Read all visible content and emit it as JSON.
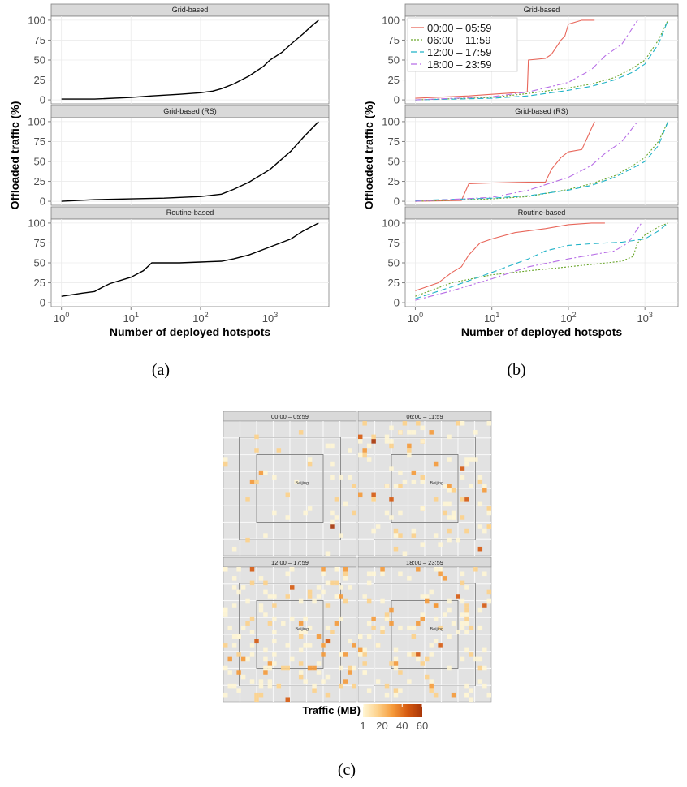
{
  "figure": {
    "caption_a": "(a)",
    "caption_b": "(b)",
    "caption_c": "(c)"
  },
  "chart_data": [
    {
      "type": "line",
      "id": "a",
      "xlabel": "Number of deployed hotspots",
      "ylabel": "Offloaded traffic (%)",
      "xscale": "log10",
      "xlim": [
        1,
        5000
      ],
      "xticks": [
        1,
        10,
        100,
        1000
      ],
      "xtick_labels": [
        "10^0",
        "10^1",
        "10^2",
        "10^3"
      ],
      "ylim": [
        0,
        100
      ],
      "yticks": [
        0,
        25,
        50,
        75,
        100
      ],
      "panels": [
        {
          "title": "Grid-based",
          "series": [
            {
              "x": [
                1,
                3,
                10,
                20,
                50,
                100,
                150,
                200,
                300,
                500,
                800,
                1000,
                1500,
                2000,
                3000,
                4000,
                5000
              ],
              "y": [
                1,
                1,
                3,
                5,
                7,
                9,
                11,
                14,
                20,
                30,
                42,
                50,
                60,
                70,
                83,
                93,
                100
              ]
            }
          ]
        },
        {
          "title": "Grid-based (RS)",
          "series": [
            {
              "x": [
                1,
                3,
                10,
                30,
                100,
                200,
                300,
                500,
                1000,
                2000,
                3000,
                5000
              ],
              "y": [
                0,
                2,
                3,
                4,
                6,
                9,
                15,
                24,
                40,
                63,
                80,
                100
              ]
            }
          ]
        },
        {
          "title": "Routine-based",
          "series": [
            {
              "x": [
                1,
                2,
                3,
                4,
                5,
                10,
                15,
                20,
                50,
                100,
                200,
                300,
                500,
                1000,
                2000,
                3000,
                5000
              ],
              "y": [
                8,
                12,
                14,
                20,
                24,
                32,
                40,
                50,
                50,
                51,
                52,
                55,
                60,
                70,
                80,
                90,
                100
              ]
            }
          ]
        }
      ]
    },
    {
      "type": "line",
      "id": "b",
      "xlabel": "Number of deployed hotspots",
      "ylabel": "Offloaded traffic (%)",
      "xscale": "log10",
      "xlim": [
        1,
        2000
      ],
      "xticks": [
        1,
        10,
        100,
        1000
      ],
      "xtick_labels": [
        "10^0",
        "10^1",
        "10^2",
        "10^3"
      ],
      "ylim": [
        0,
        100
      ],
      "yticks": [
        0,
        25,
        50,
        75,
        100
      ],
      "legend": "top-left",
      "series_styles": [
        {
          "name": "00:00 – 05:59",
          "color": "#e8665a",
          "dash": ""
        },
        {
          "name": "06:00 – 11:59",
          "color": "#6aa62b",
          "dash": "2,2"
        },
        {
          "name": "12:00 – 17:59",
          "color": "#1fb2c7",
          "dash": "7,4"
        },
        {
          "name": "18:00 – 23:59",
          "color": "#b76ee6",
          "dash": "8,3,2,3"
        }
      ],
      "panels": [
        {
          "title": "Grid-based",
          "series": [
            {
              "x": [
                1,
                5,
                10,
                20,
                29,
                30,
                50,
                60,
                80,
                90,
                100,
                150,
                220
              ],
              "y": [
                2,
                5,
                7,
                9,
                10,
                50,
                52,
                57,
                75,
                80,
                95,
                100,
                100
              ]
            },
            {
              "x": [
                1,
                10,
                30,
                100,
                200,
                400,
                700,
                1000,
                1500,
                2000
              ],
              "y": [
                0,
                3,
                8,
                15,
                20,
                28,
                40,
                50,
                75,
                100
              ]
            },
            {
              "x": [
                1,
                10,
                30,
                100,
                200,
                400,
                700,
                1000,
                1500,
                2000
              ],
              "y": [
                0,
                2,
                5,
                12,
                17,
                25,
                35,
                45,
                70,
                100
              ]
            },
            {
              "x": [
                1,
                10,
                30,
                100,
                200,
                300,
                500,
                800
              ],
              "y": [
                0,
                4,
                10,
                22,
                38,
                55,
                70,
                100
              ]
            }
          ]
        },
        {
          "title": "Grid-based (RS)",
          "series": [
            {
              "x": [
                1,
                4,
                5,
                10,
                30,
                50,
                60,
                80,
                100,
                150,
                220
              ],
              "y": [
                0,
                1,
                22,
                23,
                24,
                24,
                40,
                55,
                62,
                65,
                100
              ]
            },
            {
              "x": [
                1,
                10,
                30,
                100,
                200,
                400,
                700,
                1000,
                1500,
                2000
              ],
              "y": [
                0,
                3,
                6,
                15,
                22,
                32,
                45,
                55,
                75,
                100
              ]
            },
            {
              "x": [
                1,
                10,
                30,
                100,
                200,
                400,
                700,
                1000,
                1500,
                2000
              ],
              "y": [
                1,
                4,
                7,
                14,
                20,
                30,
                42,
                50,
                70,
                100
              ]
            },
            {
              "x": [
                1,
                10,
                30,
                100,
                200,
                300,
                500,
                800
              ],
              "y": [
                0,
                5,
                14,
                30,
                45,
                60,
                75,
                100
              ]
            }
          ]
        },
        {
          "title": "Routine-based",
          "series": [
            {
              "x": [
                1,
                2,
                3,
                4,
                5,
                7,
                10,
                20,
                50,
                100,
                200,
                300
              ],
              "y": [
                15,
                25,
                38,
                45,
                60,
                75,
                80,
                88,
                93,
                98,
                100,
                100
              ]
            },
            {
              "x": [
                1,
                3,
                10,
                30,
                100,
                200,
                500,
                700,
                800,
                1000,
                1500,
                2000
              ],
              "y": [
                8,
                25,
                35,
                40,
                45,
                48,
                52,
                58,
                75,
                85,
                95,
                100
              ]
            },
            {
              "x": [
                1,
                3,
                10,
                30,
                50,
                100,
                200,
                500,
                1000,
                1500,
                2000
              ],
              "y": [
                5,
                20,
                38,
                55,
                65,
                72,
                74,
                76,
                80,
                90,
                100
              ]
            },
            {
              "x": [
                1,
                3,
                10,
                30,
                100,
                200,
                400,
                600,
                900
              ],
              "y": [
                3,
                15,
                30,
                45,
                55,
                60,
                65,
                75,
                100
              ]
            }
          ]
        }
      ]
    },
    {
      "type": "heatmap",
      "id": "c",
      "panels": [
        "00:00 – 05:59",
        "06:00 – 11:59",
        "12:00 – 17:59",
        "18:00 – 23:59"
      ],
      "map_label": "Beijing",
      "colorbar": {
        "title": "Traffic (MB)",
        "ticks": [
          1,
          20,
          40,
          60
        ],
        "colors": [
          "#fff6d5",
          "#fdd18a",
          "#f59a3a",
          "#d65a10",
          "#a83608"
        ]
      }
    }
  ]
}
